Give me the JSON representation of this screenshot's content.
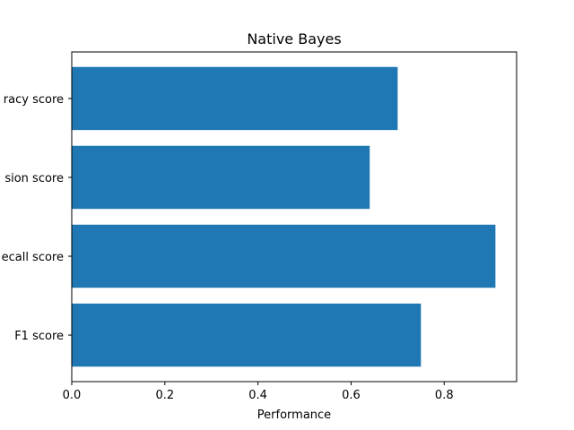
{
  "chart_data": {
    "type": "bar",
    "orientation": "horizontal",
    "title": "Native Bayes",
    "xlabel": "Performance",
    "ylabel": "",
    "categories": [
      "Accuracy score",
      "Precision score",
      "Recall score",
      "F1 score"
    ],
    "category_labels_visible": [
      "racy score",
      "sion score",
      "ecall score",
      "F1 score"
    ],
    "values": [
      0.7,
      0.64,
      0.91,
      0.75
    ],
    "xlim": [
      0,
      0.9555
    ],
    "xticks": [
      0.0,
      0.2,
      0.4,
      0.6,
      0.8
    ],
    "xtick_labels": [
      "0.0",
      "0.2",
      "0.4",
      "0.6",
      "0.8"
    ],
    "bar_color": "#1f77b4",
    "grid": false,
    "legend": "none"
  }
}
